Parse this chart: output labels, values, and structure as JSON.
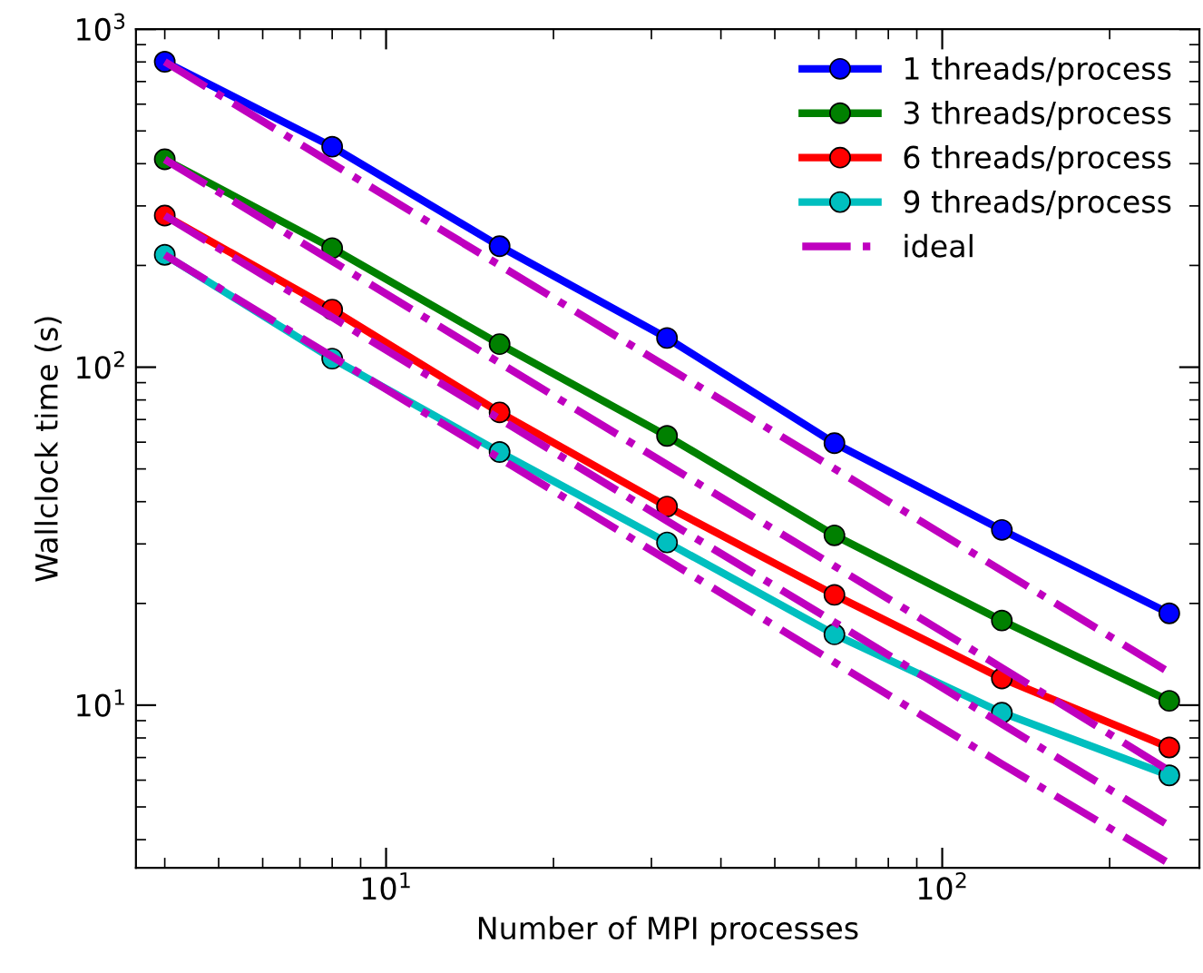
{
  "chart_data": {
    "type": "line",
    "xlabel": "Number of MPI processes",
    "ylabel": "Wallclock time (s)",
    "log": "xy",
    "grid": false,
    "legend": "top right",
    "marker": "circle",
    "line_style": "solid",
    "x": [
      4,
      8,
      16,
      32,
      64,
      128,
      256
    ],
    "xlim": [
      3.55,
      290
    ],
    "ylim": [
      3.3,
      1000
    ],
    "xticks": [
      {
        "value": 10,
        "label": "10$^{1}$"
      },
      {
        "value": 100,
        "label": "10$^{2}$"
      }
    ],
    "yticks": [
      {
        "value": 10,
        "label": "10$^{1}$"
      },
      {
        "value": 100,
        "label": "10$^{2}$"
      },
      {
        "value": 1000,
        "label": "10$^{3}$"
      }
    ],
    "series": [
      {
        "name": "1 threads/process",
        "color": "#0000ff",
        "values": [
          801,
          449,
          228,
          122,
          59.6,
          33,
          18.7
        ]
      },
      {
        "name": "3 threads/process",
        "color": "#008000",
        "values": [
          412,
          225,
          117,
          62.6,
          31.8,
          17.8,
          10.3
        ]
      },
      {
        "name": "6 threads/process",
        "color": "#ff0000",
        "values": [
          281,
          148,
          73.5,
          38.7,
          21.2,
          12.0,
          7.5
        ]
      },
      {
        "name": "9 threads/process",
        "color": "#00bfbf",
        "values": [
          215,
          106,
          56.1,
          30.3,
          16.2,
          9.5,
          6.2
        ]
      },
      {
        "name": "ideal",
        "color": "#bf00bf",
        "marker": "none",
        "line_style": "dashdot",
        "values": [
          801,
          400.5,
          200.3,
          100.1,
          50.1,
          25.0,
          12.5
        ]
      },
      {
        "color": "#bf00bf",
        "marker": "none",
        "line_style": "dashdot",
        "values": [
          412,
          206,
          103,
          51.5,
          25.8,
          12.9,
          6.4
        ]
      },
      {
        "color": "#bf00bf",
        "marker": "none",
        "line_style": "dashdot",
        "values": [
          281,
          140.5,
          70.3,
          35.1,
          17.6,
          8.8,
          4.4
        ]
      },
      {
        "color": "#bf00bf",
        "marker": "none",
        "line_style": "dashdot",
        "values": [
          215,
          107.5,
          53.8,
          26.9,
          13.4,
          6.7,
          3.4
        ]
      }
    ]
  }
}
